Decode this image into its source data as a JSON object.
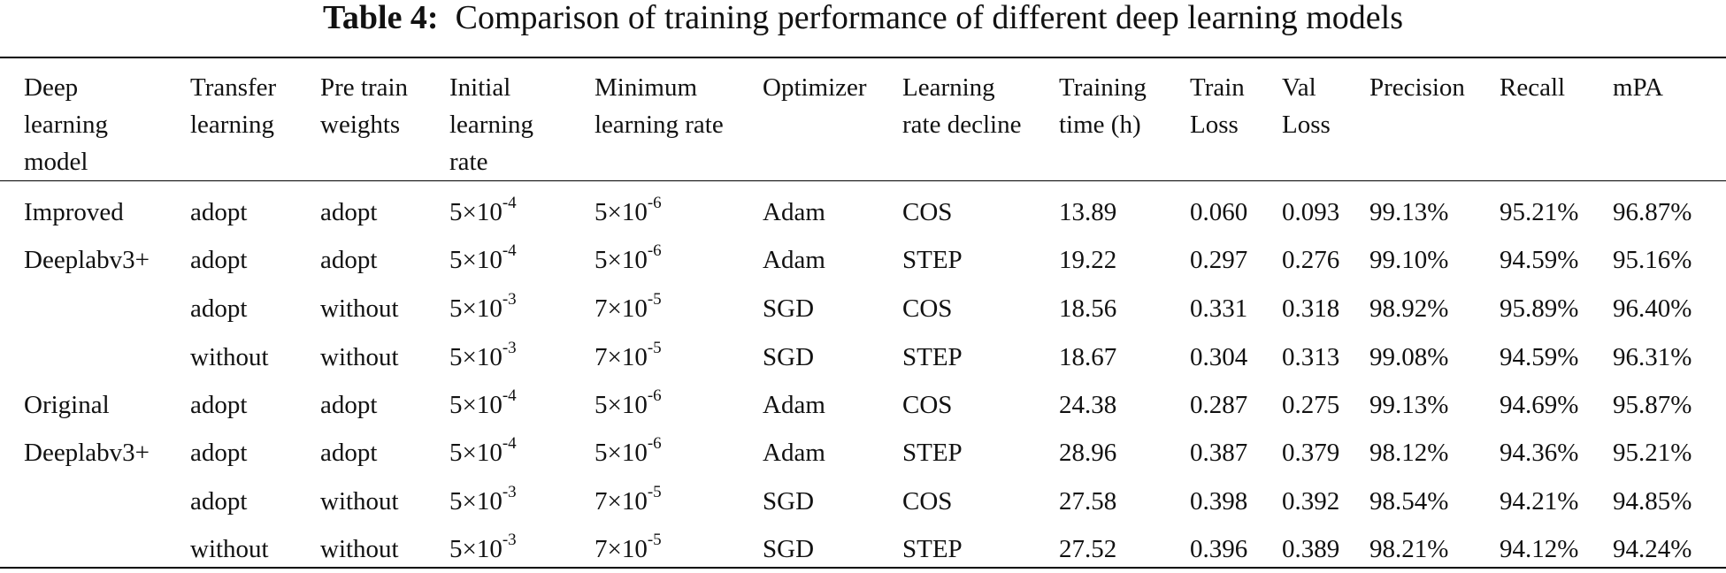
{
  "caption": {
    "label": "Table 4:",
    "text": "Comparison of training performance of different deep learning models"
  },
  "headers": [
    "Deep\nlearning\nmodel",
    "Transfer\nlearning",
    "Pre train\nweights",
    "Initial\nlearning\nrate",
    "Minimum\nlearning rate",
    "Optimizer",
    "Learning\nrate decline",
    "Training\ntime (h)",
    "Train\nLoss",
    "Val\nLoss",
    "Precision",
    "Recall",
    "mPA"
  ],
  "groups": [
    {
      "model": "Improved\nDeeplabv3+"
    },
    {
      "model": "Original\nDeeplabv3+"
    }
  ],
  "rows": [
    {
      "transfer": "adopt",
      "weights": "adopt",
      "init_base": "5×10",
      "init_exp": "-4",
      "min_base": "5×10",
      "min_exp": "-6",
      "optimizer": "Adam",
      "decline": "COS",
      "time": "13.89",
      "train_loss": "0.060",
      "val_loss": "0.093",
      "precision": "99.13%",
      "recall": "95.21%",
      "mpa": "96.87%"
    },
    {
      "transfer": "adopt",
      "weights": "adopt",
      "init_base": "5×10",
      "init_exp": "-4",
      "min_base": "5×10",
      "min_exp": "-6",
      "optimizer": "Adam",
      "decline": "STEP",
      "time": "19.22",
      "train_loss": "0.297",
      "val_loss": "0.276",
      "precision": "99.10%",
      "recall": "94.59%",
      "mpa": "95.16%"
    },
    {
      "transfer": "adopt",
      "weights": "without",
      "init_base": "5×10",
      "init_exp": "-3",
      "min_base": "7×10",
      "min_exp": "-5",
      "optimizer": "SGD",
      "decline": "COS",
      "time": "18.56",
      "train_loss": "0.331",
      "val_loss": "0.318",
      "precision": "98.92%",
      "recall": "95.89%",
      "mpa": "96.40%"
    },
    {
      "transfer": "without",
      "weights": "without",
      "init_base": "5×10",
      "init_exp": "-3",
      "min_base": "7×10",
      "min_exp": "-5",
      "optimizer": "SGD",
      "decline": "STEP",
      "time": "18.67",
      "train_loss": "0.304",
      "val_loss": "0.313",
      "precision": "99.08%",
      "recall": "94.59%",
      "mpa": "96.31%"
    },
    {
      "transfer": "adopt",
      "weights": "adopt",
      "init_base": "5×10",
      "init_exp": "-4",
      "min_base": "5×10",
      "min_exp": "-6",
      "optimizer": "Adam",
      "decline": "COS",
      "time": "24.38",
      "train_loss": "0.287",
      "val_loss": "0.275",
      "precision": "99.13%",
      "recall": "94.69%",
      "mpa": "95.87%"
    },
    {
      "transfer": "adopt",
      "weights": "adopt",
      "init_base": "5×10",
      "init_exp": "-4",
      "min_base": "5×10",
      "min_exp": "-6",
      "optimizer": "Adam",
      "decline": "STEP",
      "time": "28.96",
      "train_loss": "0.387",
      "val_loss": "0.379",
      "precision": "98.12%",
      "recall": "94.36%",
      "mpa": "95.21%"
    },
    {
      "transfer": "adopt",
      "weights": "without",
      "init_base": "5×10",
      "init_exp": "-3",
      "min_base": "7×10",
      "min_exp": "-5",
      "optimizer": "SGD",
      "decline": "COS",
      "time": "27.58",
      "train_loss": "0.398",
      "val_loss": "0.392",
      "precision": "98.54%",
      "recall": "94.21%",
      "mpa": "94.85%"
    },
    {
      "transfer": "without",
      "weights": "without",
      "init_base": "5×10",
      "init_exp": "-3",
      "min_base": "7×10",
      "min_exp": "-5",
      "optimizer": "SGD",
      "decline": "STEP",
      "time": "27.52",
      "train_loss": "0.396",
      "val_loss": "0.389",
      "precision": "98.21%",
      "recall": "94.12%",
      "mpa": "94.24%"
    }
  ]
}
